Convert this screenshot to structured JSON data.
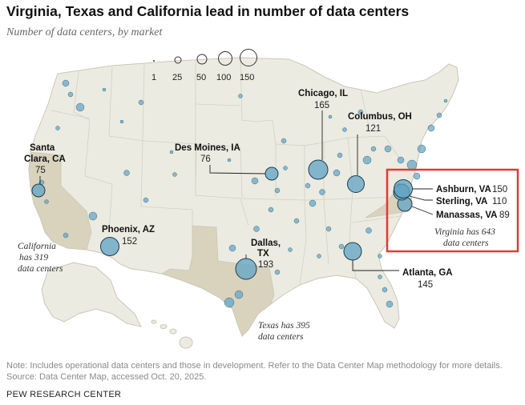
{
  "title": "Virginia, Texas and California lead in number of data centers",
  "subtitle": "Number of data centers, by market",
  "legend": {
    "values": [
      "1",
      "25",
      "50",
      "100",
      "150"
    ]
  },
  "markets": [
    {
      "name": "Santa Clara, CA",
      "name_lines": [
        "Santa",
        "Clara, CA"
      ],
      "count": "75"
    },
    {
      "name": "Phoenix, AZ",
      "count": "152"
    },
    {
      "name": "Des Moines, IA",
      "count": "76"
    },
    {
      "name": "Chicago, IL",
      "count": "165"
    },
    {
      "name": "Columbus, OH",
      "count": "121"
    },
    {
      "name": "Dallas, TX",
      "name_lines": [
        "Dallas,",
        "TX"
      ],
      "count": "193"
    },
    {
      "name": "Atlanta, GA",
      "count": "145"
    },
    {
      "name": "Ashburn, VA",
      "count": "150"
    },
    {
      "name": "Sterling, VA",
      "count": "110"
    },
    {
      "name": "Manassas, VA",
      "count": "89"
    }
  ],
  "state_notes": {
    "california": [
      "California",
      "has 319",
      "data centers"
    ],
    "texas": [
      "Texas has 395",
      "data centers"
    ],
    "virginia": [
      "Virginia has 643",
      "data centers"
    ]
  },
  "colors": {
    "land": "#ecebe1",
    "highlight_state": "#d9d3be",
    "bubble_fill": "#5fa3c4",
    "bubble_stroke": "#1f3d4d",
    "highlight_box": "#e03c31"
  },
  "note": "Note: Includes operational data centers and those in development. Refer to the Data Center Map methodology for more details.",
  "source": "Source: Data Center Map, accessed Oct. 20, 2025.",
  "brand": "PEW RESEARCH CENTER"
}
